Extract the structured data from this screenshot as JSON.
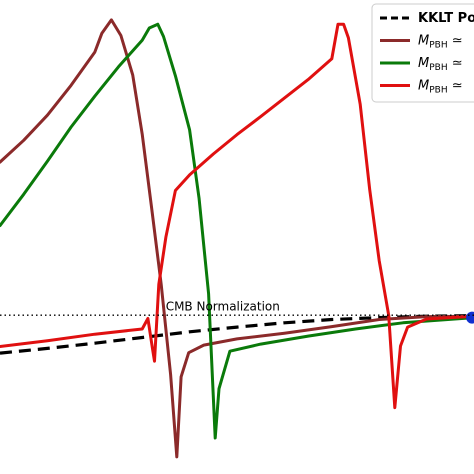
{
  "chart_data": {
    "type": "line",
    "title": "",
    "xlabel": "",
    "ylabel": "",
    "xlim": [
      0,
      100
    ],
    "ylim": [
      0,
      100
    ],
    "grid": false,
    "legend": {
      "placement": "top-right",
      "entries": [
        {
          "label": "KKLT Po",
          "color": "#000000",
          "style": "dashed"
        },
        {
          "label": "M",
          "sub": "PBH",
          "suffix": " ≃",
          "color": "#8b2a2a",
          "style": "solid"
        },
        {
          "label": "M",
          "sub": "PBH",
          "suffix": " ≃",
          "color": "#0a7a0a",
          "style": "solid"
        },
        {
          "label": "M",
          "sub": "PBH",
          "suffix": " ≃",
          "color": "#e01010",
          "style": "solid"
        }
      ]
    },
    "annotations": [
      {
        "text": "CMB Normalization",
        "x": 47,
        "y": 34.5
      }
    ],
    "reference_line": {
      "y": 33.5,
      "style": "dotted",
      "color": "#000000"
    },
    "series": [
      {
        "color": "#000000",
        "style": "dashed",
        "points": [
          [
            0,
            25.5
          ],
          [
            10,
            26.5
          ],
          [
            20,
            27.6
          ],
          [
            30,
            28.8
          ],
          [
            40,
            30.0
          ],
          [
            50,
            31.0
          ],
          [
            60,
            31.9
          ],
          [
            70,
            32.6
          ],
          [
            80,
            33.0
          ],
          [
            90,
            33.3
          ],
          [
            100,
            33.4
          ]
        ]
      },
      {
        "color": "#8b2a2a",
        "style": "solid",
        "points": [
          [
            0,
            65.8
          ],
          [
            5,
            70.4
          ],
          [
            10,
            75.7
          ],
          [
            15,
            82.0
          ],
          [
            20,
            89.0
          ],
          [
            21.5,
            93.0
          ],
          [
            23.5,
            95.8
          ],
          [
            25.5,
            92.5
          ],
          [
            28,
            84.2
          ],
          [
            30,
            71.7
          ],
          [
            32,
            56.0
          ],
          [
            34,
            40.0
          ],
          [
            36,
            21.0
          ],
          [
            37.3,
            3.6
          ],
          [
            38.2,
            20.5
          ],
          [
            39.8,
            25.6
          ],
          [
            43,
            27.2
          ],
          [
            50,
            28.5
          ],
          [
            60,
            29.7
          ],
          [
            70,
            31.1
          ],
          [
            80,
            32.6
          ],
          [
            90,
            33.2
          ],
          [
            100,
            33.3
          ]
        ]
      },
      {
        "color": "#0a7a0a",
        "style": "solid",
        "points": [
          [
            0,
            52.4
          ],
          [
            5,
            59.0
          ],
          [
            10,
            66.0
          ],
          [
            15,
            73.2
          ],
          [
            20,
            79.7
          ],
          [
            25,
            85.9
          ],
          [
            30,
            91.5
          ],
          [
            31.5,
            94.1
          ],
          [
            33.3,
            94.9
          ],
          [
            34.5,
            92.3
          ],
          [
            37,
            84.0
          ],
          [
            40,
            72.6
          ],
          [
            42,
            58.1
          ],
          [
            44,
            38.0
          ],
          [
            45.4,
            7.6
          ],
          [
            46.2,
            18.0
          ],
          [
            48.5,
            25.9
          ],
          [
            55,
            27.4
          ],
          [
            65,
            29.1
          ],
          [
            75,
            30.6
          ],
          [
            85,
            31.9
          ],
          [
            100,
            33.0
          ]
        ]
      },
      {
        "color": "#e01010",
        "style": "solid",
        "points": [
          [
            0,
            26.9
          ],
          [
            10,
            28.1
          ],
          [
            20,
            29.5
          ],
          [
            30,
            30.6
          ],
          [
            31.2,
            32.8
          ],
          [
            32.2,
            26.3
          ],
          [
            32.6,
            23.8
          ],
          [
            33.5,
            40.0
          ],
          [
            35,
            50.0
          ],
          [
            37,
            59.8
          ],
          [
            40,
            63.1
          ],
          [
            45,
            67.5
          ],
          [
            50,
            71.6
          ],
          [
            55,
            75.4
          ],
          [
            60,
            79.3
          ],
          [
            65,
            83.2
          ],
          [
            70,
            87.6
          ],
          [
            71.3,
            94.9
          ],
          [
            72.5,
            94.9
          ],
          [
            73.5,
            92.0
          ],
          [
            76,
            78.0
          ],
          [
            78,
            60.0
          ],
          [
            80,
            45.0
          ],
          [
            82,
            33.5
          ],
          [
            83.3,
            14.0
          ],
          [
            84.5,
            27.0
          ],
          [
            86,
            31.0
          ],
          [
            90,
            32.7
          ],
          [
            100,
            33.3
          ]
        ]
      }
    ],
    "end_marker": {
      "x": 99.6,
      "y": 33.0,
      "color": "#1030d0"
    }
  }
}
